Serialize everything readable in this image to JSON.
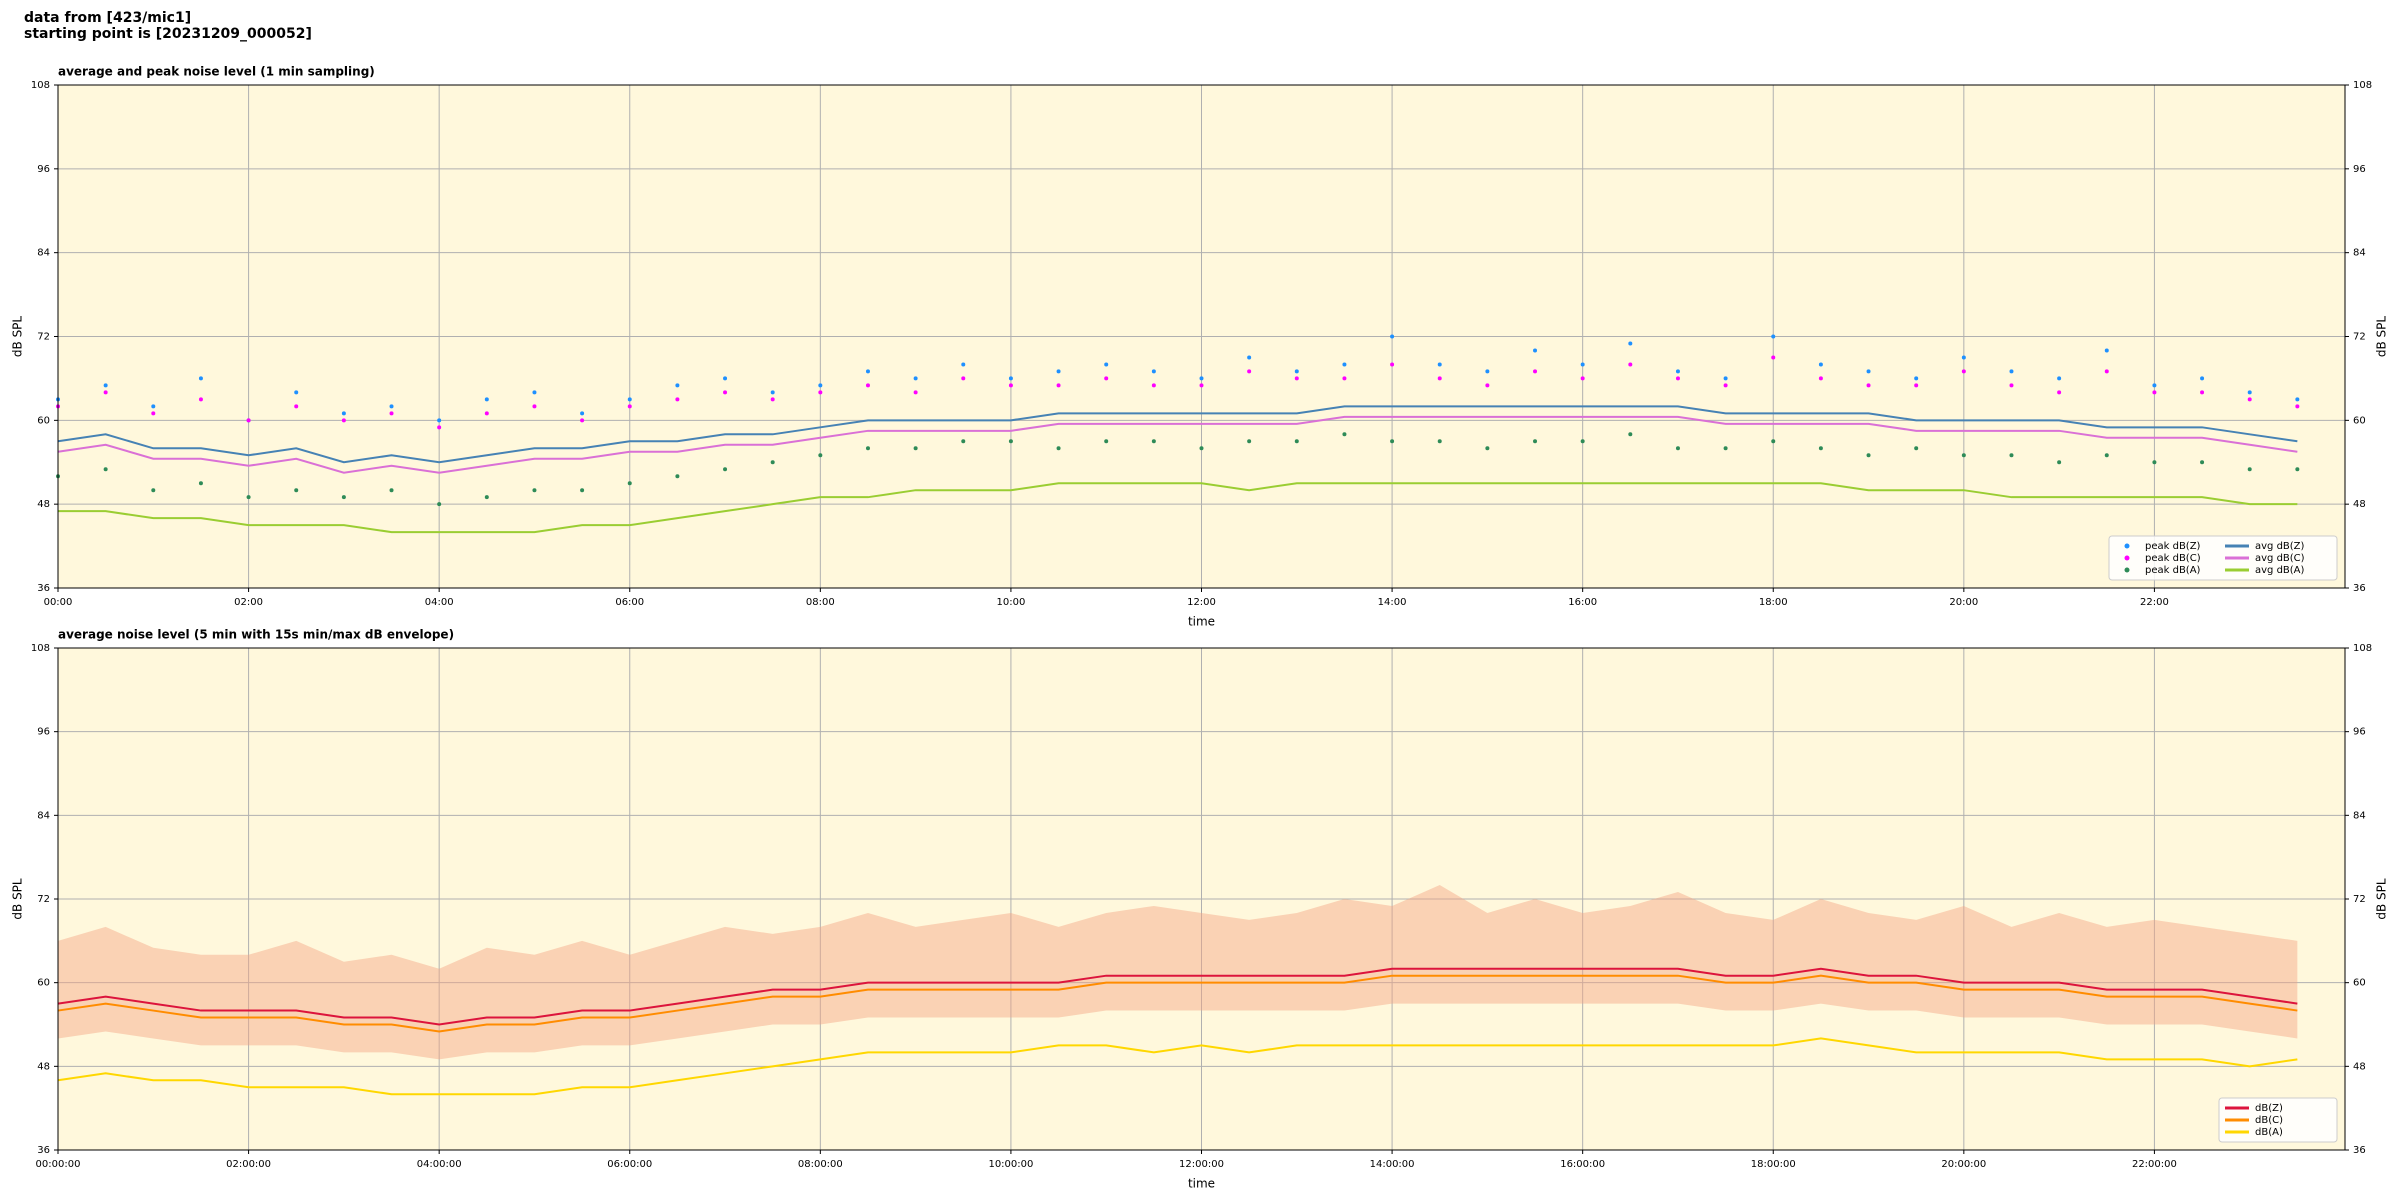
{
  "header": {
    "lines": [
      "data from [423/mic1]",
      "starting point is [20231209_000052]"
    ]
  },
  "chart_data": [
    {
      "type": "line",
      "title": "average and peak noise level (1 min sampling)",
      "xlabel": "time",
      "ylabel": "dB SPL",
      "legend": "lower right",
      "legend_ncol": 2,
      "grid": true,
      "background": "#fff8dc",
      "xlim": [
        0,
        24
      ],
      "ylim": [
        36,
        108
      ],
      "yticks": [
        36,
        48,
        60,
        72,
        84,
        96,
        108
      ],
      "xticks": [
        {
          "value": 0,
          "label": "00:00"
        },
        {
          "value": 2,
          "label": "02:00"
        },
        {
          "value": 4,
          "label": "04:00"
        },
        {
          "value": 6,
          "label": "06:00"
        },
        {
          "value": 8,
          "label": "08:00"
        },
        {
          "value": 10,
          "label": "10:00"
        },
        {
          "value": 12,
          "label": "12:00"
        },
        {
          "value": 14,
          "label": "14:00"
        },
        {
          "value": 16,
          "label": "16:00"
        },
        {
          "value": 18,
          "label": "18:00"
        },
        {
          "value": 20,
          "label": "20:00"
        },
        {
          "value": 22,
          "label": "22:00"
        }
      ],
      "x": [
        0,
        0.5,
        1,
        1.5,
        2,
        2.5,
        3,
        3.5,
        4,
        4.5,
        5,
        5.5,
        6,
        6.5,
        7,
        7.5,
        8,
        8.5,
        9,
        9.5,
        10,
        10.5,
        11,
        11.5,
        12,
        12.5,
        13,
        13.5,
        14,
        14.5,
        15,
        15.5,
        16,
        16.5,
        17,
        17.5,
        18,
        18.5,
        19,
        19.5,
        20,
        20.5,
        21,
        21.5,
        22,
        22.5,
        23,
        23.5
      ],
      "series": [
        {
          "name": "peak dB(Z)",
          "type": "scatter",
          "color": "#1e90ff",
          "values": [
            63,
            65,
            62,
            66,
            60,
            64,
            61,
            62,
            60,
            63,
            64,
            61,
            63,
            65,
            66,
            64,
            65,
            67,
            66,
            68,
            66,
            67,
            68,
            67,
            66,
            69,
            67,
            68,
            72,
            68,
            67,
            70,
            68,
            71,
            67,
            66,
            72,
            68,
            67,
            66,
            69,
            67,
            66,
            70,
            65,
            66,
            64,
            63
          ]
        },
        {
          "name": "peak dB(C)",
          "type": "scatter",
          "color": "#ff00ff",
          "values": [
            62,
            64,
            61,
            63,
            60,
            62,
            60,
            61,
            59,
            61,
            62,
            60,
            62,
            63,
            64,
            63,
            64,
            65,
            64,
            66,
            65,
            65,
            66,
            65,
            65,
            67,
            66,
            66,
            68,
            66,
            65,
            67,
            66,
            68,
            66,
            65,
            69,
            66,
            65,
            65,
            67,
            65,
            64,
            67,
            64,
            64,
            63,
            62
          ]
        },
        {
          "name": "peak dB(A)",
          "type": "scatter",
          "color": "#2e8b57",
          "values": [
            52,
            53,
            50,
            51,
            49,
            50,
            49,
            50,
            48,
            49,
            50,
            50,
            51,
            52,
            53,
            54,
            55,
            56,
            56,
            57,
            57,
            56,
            57,
            57,
            56,
            57,
            57,
            58,
            57,
            57,
            56,
            57,
            57,
            58,
            56,
            56,
            57,
            56,
            55,
            56,
            55,
            55,
            54,
            55,
            54,
            54,
            53,
            53
          ]
        },
        {
          "name": "avg dB(Z)",
          "type": "line",
          "color": "#4682b4",
          "values": [
            57,
            58,
            56,
            56,
            55,
            56,
            54,
            55,
            54,
            55,
            56,
            56,
            57,
            57,
            58,
            58,
            59,
            60,
            60,
            60,
            60,
            61,
            61,
            61,
            61,
            61,
            61,
            62,
            62,
            62,
            62,
            62,
            62,
            62,
            62,
            61,
            61,
            61,
            61,
            60,
            60,
            60,
            60,
            59,
            59,
            59,
            58,
            57
          ]
        },
        {
          "name": "avg dB(C)",
          "type": "line",
          "color": "#da70d6",
          "values": [
            55.5,
            56.5,
            54.5,
            54.5,
            53.5,
            54.5,
            52.5,
            53.5,
            52.5,
            53.5,
            54.5,
            54.5,
            55.5,
            55.5,
            56.5,
            56.5,
            57.5,
            58.5,
            58.5,
            58.5,
            58.5,
            59.5,
            59.5,
            59.5,
            59.5,
            59.5,
            59.5,
            60.5,
            60.5,
            60.5,
            60.5,
            60.5,
            60.5,
            60.5,
            60.5,
            59.5,
            59.5,
            59.5,
            59.5,
            58.5,
            58.5,
            58.5,
            58.5,
            57.5,
            57.5,
            57.5,
            56.5,
            55.5
          ]
        },
        {
          "name": "avg dB(A)",
          "type": "line",
          "color": "#9acd32",
          "values": [
            47,
            47,
            46,
            46,
            45,
            45,
            45,
            44,
            44,
            44,
            44,
            45,
            45,
            46,
            47,
            48,
            49,
            49,
            50,
            50,
            50,
            51,
            51,
            51,
            51,
            50,
            51,
            51,
            51,
            51,
            51,
            51,
            51,
            51,
            51,
            51,
            51,
            51,
            50,
            50,
            50,
            49,
            49,
            49,
            49,
            49,
            48,
            48
          ]
        }
      ]
    },
    {
      "type": "line",
      "title": "average noise level (5 min with 15s min/max dB envelope)",
      "xlabel": "time",
      "ylabel": "dB SPL",
      "legend": "lower right",
      "legend_ncol": 1,
      "grid": true,
      "background": "#fff8dc",
      "xlim": [
        0,
        24
      ],
      "ylim": [
        36,
        108
      ],
      "yticks": [
        36,
        48,
        60,
        72,
        84,
        96,
        108
      ],
      "xticks": [
        {
          "value": 0,
          "label": "00:00:00"
        },
        {
          "value": 2,
          "label": "02:00:00"
        },
        {
          "value": 4,
          "label": "04:00:00"
        },
        {
          "value": 6,
          "label": "06:00:00"
        },
        {
          "value": 8,
          "label": "08:00:00"
        },
        {
          "value": 10,
          "label": "10:00:00"
        },
        {
          "value": 12,
          "label": "12:00:00"
        },
        {
          "value": 14,
          "label": "14:00:00"
        },
        {
          "value": 16,
          "label": "16:00:00"
        },
        {
          "value": 18,
          "label": "18:00:00"
        },
        {
          "value": 20,
          "label": "20:00:00"
        },
        {
          "value": 22,
          "label": "22:00:00"
        }
      ],
      "x": [
        0,
        0.5,
        1,
        1.5,
        2,
        2.5,
        3,
        3.5,
        4,
        4.5,
        5,
        5.5,
        6,
        6.5,
        7,
        7.5,
        8,
        8.5,
        9,
        9.5,
        10,
        10.5,
        11,
        11.5,
        12,
        12.5,
        13,
        13.5,
        14,
        14.5,
        15,
        15.5,
        16,
        16.5,
        17,
        17.5,
        18,
        18.5,
        19,
        19.5,
        20,
        20.5,
        21,
        21.5,
        22,
        22.5,
        23,
        23.5
      ],
      "series": [
        {
          "type": "band",
          "color": "#f4a582",
          "low": [
            52,
            53,
            52,
            51,
            51,
            51,
            50,
            50,
            49,
            50,
            50,
            51,
            51,
            52,
            53,
            54,
            54,
            55,
            55,
            55,
            55,
            55,
            56,
            56,
            56,
            56,
            56,
            56,
            57,
            57,
            57,
            57,
            57,
            57,
            57,
            56,
            56,
            57,
            56,
            56,
            55,
            55,
            55,
            54,
            54,
            54,
            53,
            52
          ],
          "high": [
            66,
            68,
            65,
            64,
            64,
            66,
            63,
            64,
            62,
            65,
            64,
            66,
            64,
            66,
            68,
            67,
            68,
            70,
            68,
            69,
            70,
            68,
            70,
            71,
            70,
            69,
            70,
            72,
            71,
            74,
            70,
            72,
            70,
            71,
            73,
            70,
            69,
            72,
            70,
            69,
            71,
            68,
            70,
            68,
            69,
            68,
            67,
            66
          ]
        },
        {
          "name": "dB(Z)",
          "type": "line",
          "color": "#dc143c",
          "values": [
            57,
            58,
            57,
            56,
            56,
            56,
            55,
            55,
            54,
            55,
            55,
            56,
            56,
            57,
            58,
            59,
            59,
            60,
            60,
            60,
            60,
            60,
            61,
            61,
            61,
            61,
            61,
            61,
            62,
            62,
            62,
            62,
            62,
            62,
            62,
            61,
            61,
            62,
            61,
            61,
            60,
            60,
            60,
            59,
            59,
            59,
            58,
            57
          ]
        },
        {
          "name": "dB(C)",
          "type": "line",
          "color": "#ff8c00",
          "values": [
            56,
            57,
            56,
            55,
            55,
            55,
            54,
            54,
            53,
            54,
            54,
            55,
            55,
            56,
            57,
            58,
            58,
            59,
            59,
            59,
            59,
            59,
            60,
            60,
            60,
            60,
            60,
            60,
            61,
            61,
            61,
            61,
            61,
            61,
            61,
            60,
            60,
            61,
            60,
            60,
            59,
            59,
            59,
            58,
            58,
            58,
            57,
            56
          ]
        },
        {
          "name": "dB(A)",
          "type": "line",
          "color": "#ffd700",
          "values": [
            46,
            47,
            46,
            46,
            45,
            45,
            45,
            44,
            44,
            44,
            44,
            45,
            45,
            46,
            47,
            48,
            49,
            50,
            50,
            50,
            50,
            51,
            51,
            50,
            51,
            50,
            51,
            51,
            51,
            51,
            51,
            51,
            51,
            51,
            51,
            51,
            51,
            52,
            51,
            50,
            50,
            50,
            50,
            49,
            49,
            49,
            48,
            49
          ]
        }
      ]
    }
  ]
}
